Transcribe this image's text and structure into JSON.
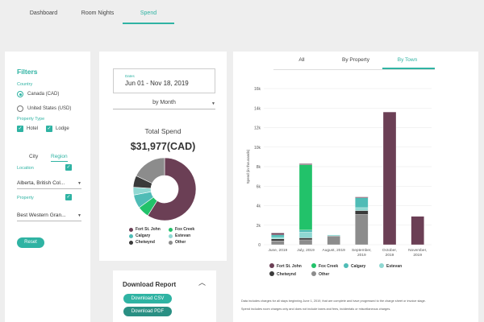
{
  "nav": {
    "tabs": [
      {
        "label": "Dashboard"
      },
      {
        "label": "Room Nights"
      },
      {
        "label": "Spend"
      }
    ],
    "active": 2
  },
  "filters": {
    "title": "Filters",
    "country_label": "Country",
    "countries": [
      {
        "label": "Canada (CAD)",
        "selected": true
      },
      {
        "label": "United States (USD)",
        "selected": false
      }
    ],
    "property_type_label": "Property Type",
    "property_types": [
      {
        "label": "Hotel",
        "checked": true
      },
      {
        "label": "Lodge",
        "checked": true
      }
    ],
    "seg_tabs": [
      {
        "label": "City"
      },
      {
        "label": "Region"
      }
    ],
    "location_label": "Location",
    "location_value": "Alberta, British Col...",
    "property_label": "Property",
    "property_value": "Best Western Gran...",
    "reset_label": "Reset"
  },
  "summary": {
    "dates_label": "Dates",
    "dates_value": "Jun 01 - Nov 18, 2019",
    "granularity": "by Month",
    "total_title": "Total Spend",
    "total_value": "$31,977(CAD)",
    "legend": [
      {
        "label": "Fort St. John",
        "color": "#6b3f55"
      },
      {
        "label": "Fox Creek",
        "color": "#22c26a"
      },
      {
        "label": "Calgary",
        "color": "#4fbcb6"
      },
      {
        "label": "Estevan",
        "color": "#8fd8d2"
      },
      {
        "label": "Chetwynd",
        "color": "#3a3a3a"
      },
      {
        "label": "Other",
        "color": "#8c8c8c"
      }
    ],
    "pie": [
      {
        "name": "Fort St. John",
        "value": 59,
        "color": "#6b3f55"
      },
      {
        "name": "Fox Creek",
        "value": 6,
        "color": "#22c26a"
      },
      {
        "name": "Calgary",
        "value": 7,
        "color": "#4fbcb6"
      },
      {
        "name": "Estevan",
        "value": 4,
        "color": "#8fd8d2"
      },
      {
        "name": "Chetwynd",
        "value": 6,
        "color": "#3a3a3a"
      },
      {
        "name": "Other",
        "value": 18,
        "color": "#8c8c8c"
      }
    ]
  },
  "download": {
    "title": "Download Report",
    "csv_label": "Download CSV",
    "pdf_label": "Download PDF"
  },
  "chart_tabs": [
    {
      "label": "All"
    },
    {
      "label": "By Property"
    },
    {
      "label": "By Town"
    }
  ],
  "chart_tabs_active": 2,
  "chart_data": {
    "type": "bar",
    "stacked": true,
    "ylabel": "Spend (in thousands)",
    "ylim": [
      0,
      16000
    ],
    "yticks": [
      "0",
      "2k",
      "4k",
      "6k",
      "8k",
      "10k",
      "12k",
      "14k",
      "16k"
    ],
    "categories": [
      [
        "June, 2019"
      ],
      [
        "July, 2019"
      ],
      [
        "August, 2019"
      ],
      [
        "September,",
        "2019"
      ],
      [
        "October,",
        "2019"
      ],
      [
        "November,",
        "2019"
      ]
    ],
    "series": [
      {
        "name": "Other",
        "color": "#8c8c8c",
        "values": [
          400,
          500,
          900,
          3100,
          0,
          0
        ]
      },
      {
        "name": "Chetwynd",
        "color": "#3a3a3a",
        "values": [
          200,
          200,
          0,
          400,
          0,
          0
        ]
      },
      {
        "name": "Estevan",
        "color": "#8fd8d2",
        "values": [
          150,
          600,
          100,
          300,
          0,
          0
        ]
      },
      {
        "name": "Calgary",
        "color": "#4fbcb6",
        "values": [
          250,
          200,
          0,
          1000,
          0,
          0
        ]
      },
      {
        "name": "Fox Creek",
        "color": "#22c26a",
        "values": [
          0,
          6700,
          0,
          0,
          0,
          0
        ]
      },
      {
        "name": "Fort St. John",
        "color": "#6b3f55",
        "values": [
          200,
          100,
          0,
          100,
          13600,
          2900
        ]
      }
    ],
    "legend": [
      {
        "label": "Fort St. John",
        "color": "#6b3f55"
      },
      {
        "label": "Fox Creek",
        "color": "#22c26a"
      },
      {
        "label": "Calgary",
        "color": "#4fbcb6"
      },
      {
        "label": "Estevan",
        "color": "#8fd8d2"
      },
      {
        "label": "Chetwynd",
        "color": "#3a3a3a"
      },
      {
        "label": "Other",
        "color": "#8c8c8c"
      }
    ]
  },
  "notes": [
    "Data includes charges for all stays beginning June 1, 2019, that are complete and have progressed to the charge sheet or invoice stage.",
    "Spend includes room charges only and does not include taxes and fees, incidentals or miscellaneous charges."
  ]
}
